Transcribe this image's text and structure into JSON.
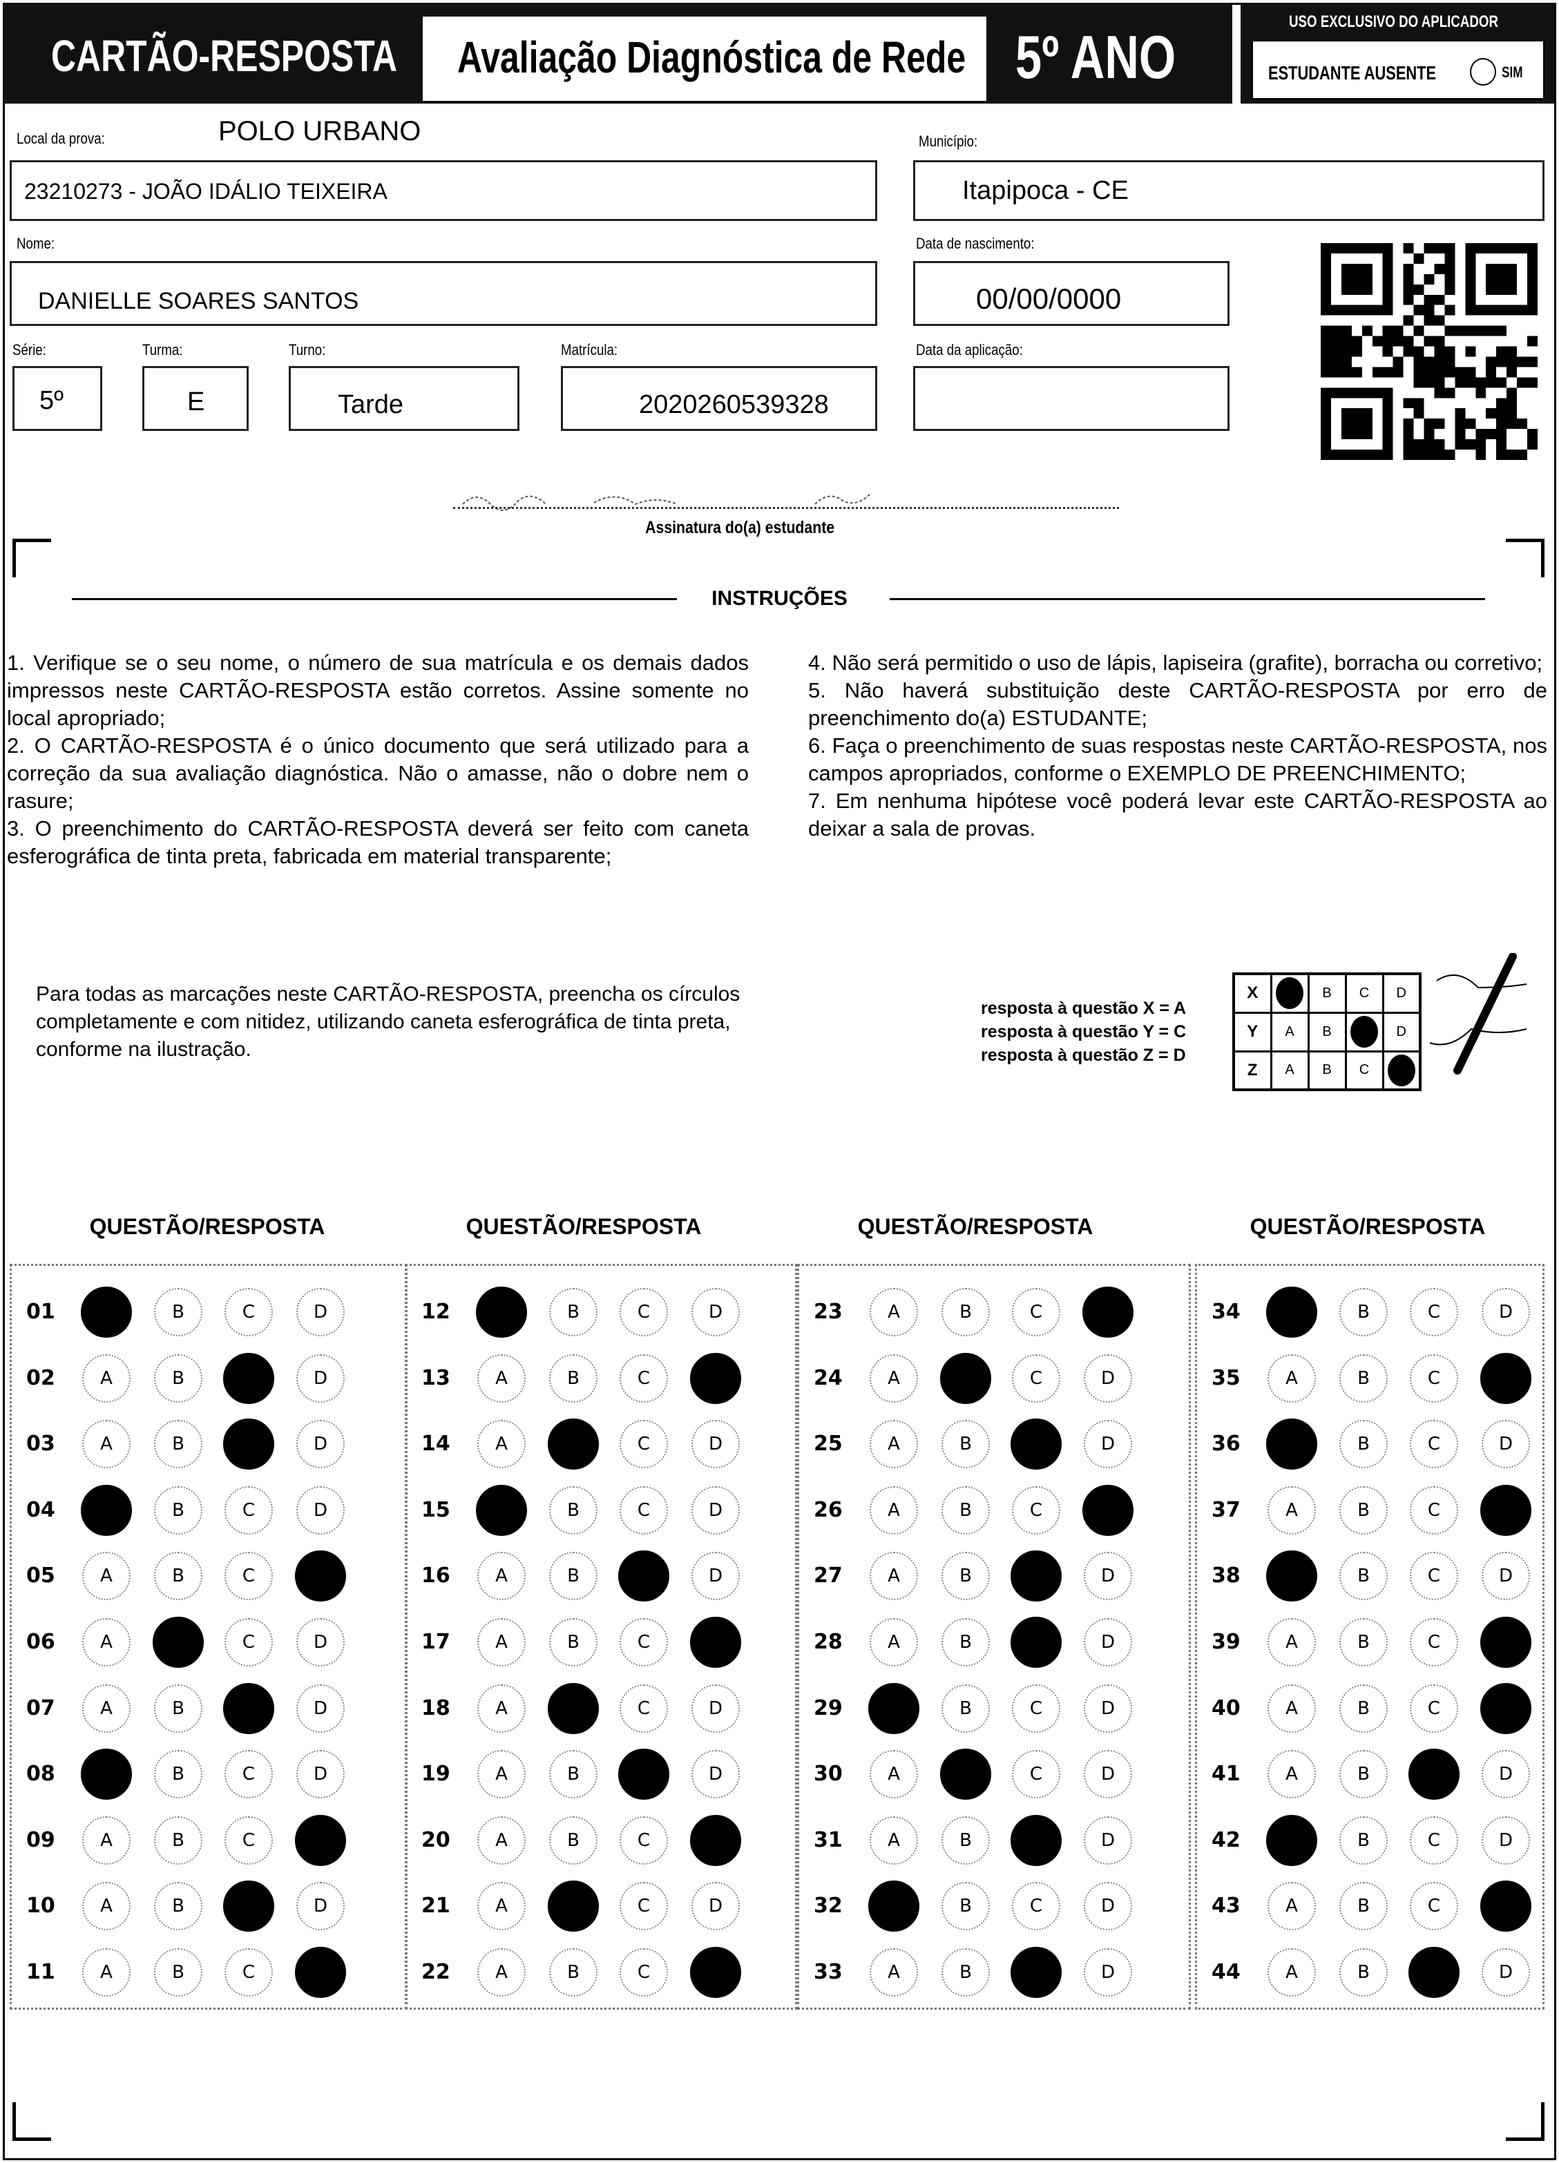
{
  "header": {
    "card_title": "CARTÃO-RESPOSTA",
    "eval_title": "Avaliação Diagnóstica de Rede",
    "grade": "5º ANO",
    "applicator": {
      "title": "USO EXCLUSIVO DO APLICADOR",
      "absent_label": "ESTUDANTE AUSENTE",
      "yes_label": "SIM"
    }
  },
  "form": {
    "local_label": "Local da prova:",
    "local_value": "POLO URBANO",
    "school": "23210273 - JOÃO IDÁLIO TEIXEIRA",
    "municipio_label": "Município:",
    "municipio": "Itapipoca - CE",
    "nome_label": "Nome:",
    "nome": "DANIELLE SOARES SANTOS",
    "nasc_label": "Data de nascimento:",
    "nasc": "00/00/0000",
    "serie_label": "Série:",
    "serie": "5º",
    "turma_label": "Turma:",
    "turma": "E",
    "turno_label": "Turno:",
    "turno": "Tarde",
    "matricula_label": "Matrícula:",
    "matricula": "2020260539328",
    "aplicacao_label": "Data da aplicação:",
    "aplicacao": "",
    "signature_label": "Assinatura do(a) estudante"
  },
  "instructions": {
    "title": "INSTRUÇÕES",
    "left": [
      "1. Verifique se o seu nome, o número de sua matrícula e os demais dados impressos neste CARTÃO-RESPOSTA estão corretos. Assine somente no local apropriado;",
      "2. O CARTÃO-RESPOSTA é o único documento que será utilizado para a correção da sua avaliação diagnóstica. Não o amasse, não o dobre nem o rasure;",
      "3. O preenchimento do CARTÃO-RESPOSTA deverá ser feito com caneta esferográfica de tinta preta, fabricada em material transparente;"
    ],
    "right": [
      "4. Não será permitido o uso de lápis, lapiseira (grafite), borracha ou corretivo;",
      "5. Não haverá substituição deste CARTÃO-RESPOSTA por erro de preenchimento do(a) ESTUDANTE;",
      "6. Faça o preenchimento de suas respostas neste CARTÃO-RESPOSTA, nos campos apropriados, conforme o EXEMPLO DE PREENCHIMENTO;",
      "7. Em nenhuma hipótese você poderá levar este CARTÃO-RESPOSTA ao deixar a sala de provas."
    ],
    "marking_note": "Para todas as marcações neste CARTÃO-RESPOSTA, preencha os círculos completamente e com nitidez, utilizando caneta esferográfica de tinta preta, conforme na ilustração.",
    "example": {
      "lines": [
        "resposta à questão X = A",
        "resposta à questão Y = C",
        "resposta à questão Z = D"
      ],
      "rows": [
        {
          "q": "X",
          "answer": "A"
        },
        {
          "q": "Y",
          "answer": "C"
        },
        {
          "q": "Z",
          "answer": "D"
        }
      ]
    }
  },
  "answers": {
    "heading": "QUESTÃO/RESPOSTA",
    "options": [
      "A",
      "B",
      "C",
      "D"
    ],
    "columns": [
      [
        [
          "01",
          "A"
        ],
        [
          "02",
          "C"
        ],
        [
          "03",
          "C"
        ],
        [
          "04",
          "A"
        ],
        [
          "05",
          "D"
        ],
        [
          "06",
          "B"
        ],
        [
          "07",
          "C"
        ],
        [
          "08",
          "A"
        ],
        [
          "09",
          "D"
        ],
        [
          "10",
          "C"
        ],
        [
          "11",
          "D"
        ]
      ],
      [
        [
          "12",
          "A"
        ],
        [
          "13",
          "D"
        ],
        [
          "14",
          "B"
        ],
        [
          "15",
          "A"
        ],
        [
          "16",
          "C"
        ],
        [
          "17",
          "D"
        ],
        [
          "18",
          "B"
        ],
        [
          "19",
          "C"
        ],
        [
          "20",
          "D"
        ],
        [
          "21",
          "B"
        ],
        [
          "22",
          "D"
        ]
      ],
      [
        [
          "23",
          "D"
        ],
        [
          "24",
          "B"
        ],
        [
          "25",
          "C"
        ],
        [
          "26",
          "D"
        ],
        [
          "27",
          "C"
        ],
        [
          "28",
          "C"
        ],
        [
          "29",
          "A"
        ],
        [
          "30",
          "B"
        ],
        [
          "31",
          "C"
        ],
        [
          "32",
          "A"
        ],
        [
          "33",
          "C"
        ]
      ],
      [
        [
          "34",
          "A"
        ],
        [
          "35",
          "D"
        ],
        [
          "36",
          "A"
        ],
        [
          "37",
          "D"
        ],
        [
          "38",
          "A"
        ],
        [
          "39",
          "D"
        ],
        [
          "40",
          "D"
        ],
        [
          "41",
          "C"
        ],
        [
          "42",
          "A"
        ],
        [
          "43",
          "D"
        ],
        [
          "44",
          "C"
        ]
      ]
    ]
  }
}
